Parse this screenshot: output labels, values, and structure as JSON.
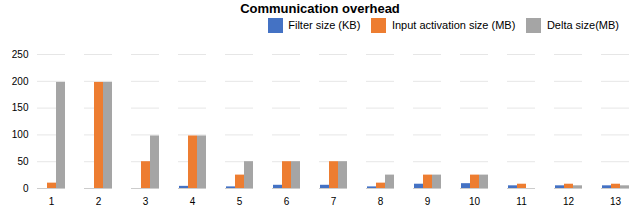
{
  "chart_data": {
    "type": "bar",
    "title": "Communication overhead",
    "categories": [
      1,
      2,
      3,
      4,
      5,
      6,
      7,
      8,
      9,
      10,
      11,
      12,
      13
    ],
    "series": [
      {
        "name": "Filter size (KB)",
        "color": "#4472C4",
        "values": [
          0,
          0,
          0,
          4,
          3,
          6,
          6,
          3,
          8,
          9,
          5,
          5,
          5
        ]
      },
      {
        "name": "Input activation size (MB)",
        "color": "#ED7D31",
        "values": [
          10,
          198,
          50,
          98,
          25,
          50,
          50,
          10,
          25,
          25,
          8,
          8,
          8
        ]
      },
      {
        "name": "Delta size(MB)",
        "color": "#A5A5A5",
        "values": [
          198,
          198,
          98,
          98,
          50,
          50,
          50,
          25,
          25,
          25,
          0,
          5,
          5
        ]
      }
    ],
    "ylim": [
      0,
      265
    ],
    "yticks": [
      0,
      50,
      100,
      150,
      200,
      250
    ],
    "grid": true,
    "legend": "upper right"
  }
}
